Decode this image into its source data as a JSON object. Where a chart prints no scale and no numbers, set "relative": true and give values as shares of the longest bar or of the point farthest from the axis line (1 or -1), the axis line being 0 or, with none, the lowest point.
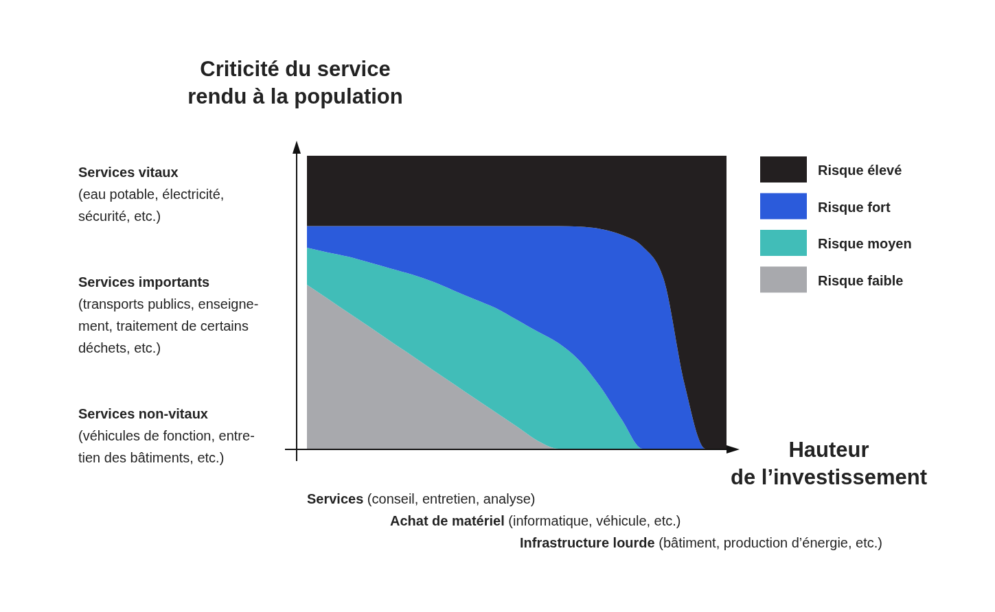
{
  "chart_data": {
    "type": "area",
    "stacked": true,
    "relative": true,
    "tick_labels": false,
    "legend": "right",
    "ylabel": "Criticité du service\nrendu à la population",
    "xlabel": "Hauteur\nde l’investissement",
    "categories": [
      null,
      null,
      null,
      null,
      null,
      null,
      null,
      null,
      null,
      null,
      null,
      null,
      null,
      null,
      null,
      null,
      null,
      null,
      null,
      null,
      null
    ],
    "series": [
      {
        "name": "Risque faible",
        "color": "#a8a9ad",
        "values": [
          0.56,
          0.512,
          0.463,
          0.415,
          0.366,
          0.318,
          0.269,
          0.221,
          0.172,
          0.124,
          0.076,
          0.027,
          0,
          0,
          0,
          0,
          0,
          0,
          0,
          0,
          0
        ]
      },
      {
        "name": "Risque moyen",
        "color": "#41bdb8",
        "values": [
          0.126,
          0.158,
          0.192,
          0.22,
          0.249,
          0.277,
          0.301,
          0.319,
          0.338,
          0.356,
          0.364,
          0.373,
          0.36,
          0.3,
          0.21,
          0.1,
          0,
          0,
          0,
          0,
          0
        ]
      },
      {
        "name": "Risque fort",
        "color": "#2b5bdb",
        "values": [
          0.074,
          0.09,
          0.105,
          0.125,
          0.145,
          0.165,
          0.19,
          0.22,
          0.25,
          0.28,
          0.32,
          0.36,
          0.4,
          0.458,
          0.54,
          0.63,
          0.69,
          0.58,
          0.22,
          0,
          0
        ]
      },
      {
        "name": "Risque élevé",
        "color": "#231f20",
        "values": [
          0.24,
          0.24,
          0.24,
          0.24,
          0.24,
          0.24,
          0.24,
          0.24,
          0.24,
          0.24,
          0.24,
          0.24,
          0.24,
          0.242,
          0.25,
          0.27,
          0.31,
          0.42,
          0.78,
          1,
          1
        ]
      }
    ],
    "annotations": [
      "Services vitaux\n(eau potable, électricité,\nsécurité, etc.)",
      "Services importants\n(transports publics, enseigne-\nment, traitement de certains\ndéchets, etc.)",
      "Services non-vitaux\n(véhicules de fonction, entre-\ntien des bâtiments, etc.)",
      "Services (conseil, entretien, analyse)",
      "Achat de matériel (informatique, véhicule, etc.)",
      "Infrastructure lourde (bâtiment, production d’énergie, etc.)"
    ]
  }
}
